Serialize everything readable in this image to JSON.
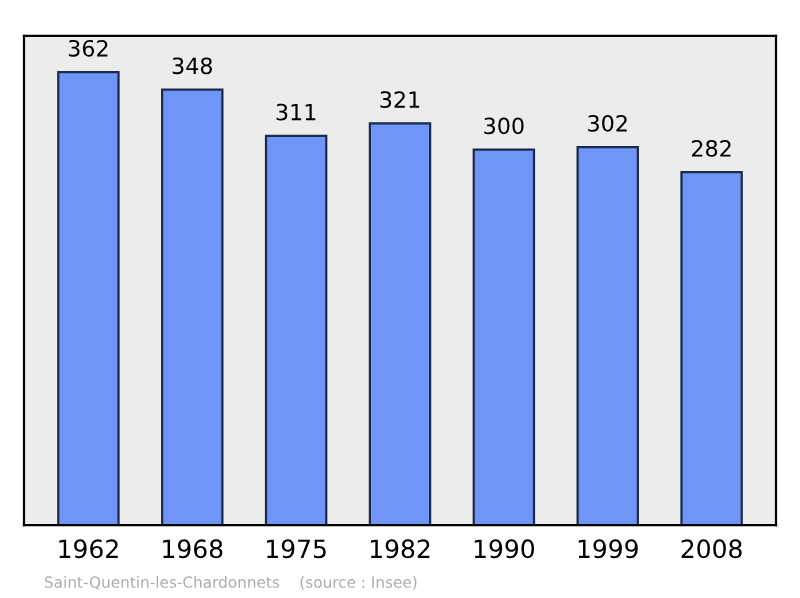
{
  "chart_data": {
    "type": "bar",
    "categories": [
      "1962",
      "1968",
      "1975",
      "1982",
      "1990",
      "1999",
      "2008"
    ],
    "values": [
      362,
      348,
      311,
      321,
      300,
      302,
      282
    ],
    "color": "#6f95f7",
    "data_labels": true,
    "grid": false,
    "annotations": [
      "Saint-Quentin-les-Chardonnets    (source : Insee)"
    ]
  }
}
